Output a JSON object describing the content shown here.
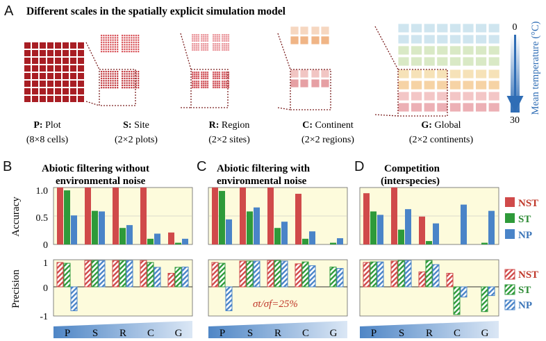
{
  "panel_a": {
    "letter": "A",
    "title": "Different scales in the spatially explicit simulation model",
    "scales": [
      {
        "key": "P",
        "name": "Plot",
        "desc": "(8×8 cells)",
        "cx": 68
      },
      {
        "key": "S",
        "name": "Site",
        "desc": "(2×2 plots)",
        "cx": 196
      },
      {
        "key": "R",
        "name": "Region",
        "desc": "(2×2 sites)",
        "cx": 330
      },
      {
        "key": "C",
        "name": "Continent",
        "desc": "(2×2 regions)",
        "cx": 472
      },
      {
        "key": "G",
        "name": "Global",
        "desc": "(2×2 continents)",
        "cx": 635
      }
    ],
    "temperature": {
      "label": "Mean temperature (°C)",
      "min_label": "0",
      "max_label": "30"
    }
  },
  "panels": [
    {
      "letter": "B",
      "title_lines": [
        "Abiotic filtering without",
        "environmental noise"
      ],
      "annotation": ""
    },
    {
      "letter": "C",
      "title_lines": [
        "Abiotic filtering with",
        "environmental noise"
      ],
      "annotation": "σt/σf=25%"
    },
    {
      "letter": "D",
      "title_lines": [
        "Competition",
        "(interspecies)"
      ],
      "annotation": ""
    }
  ],
  "axes": {
    "accuracy_label": "Accuracy",
    "precision_label": "Precision",
    "accuracy_ticks": [
      "1.0",
      "0.5",
      "0"
    ],
    "precision_ticks": [
      "1",
      "0",
      "-1"
    ]
  },
  "legend_accuracy": [
    {
      "name": "NST",
      "color": "#d04a4a"
    },
    {
      "name": "ST",
      "color": "#2e9a3a"
    },
    {
      "name": "NP",
      "color": "#4a84c8"
    }
  ],
  "legend_precision": [
    {
      "name": "NST",
      "color": "#d04a4a"
    },
    {
      "name": "ST",
      "color": "#2e9a3a"
    },
    {
      "name": "NP",
      "color": "#4a84c8"
    }
  ],
  "chart_data": [
    {
      "type": "bar",
      "panel": "B",
      "ylabel": "Accuracy",
      "ylim": [
        0,
        1
      ],
      "categories": [
        "P",
        "S",
        "R",
        "C",
        "G"
      ],
      "series": [
        {
          "name": "NST",
          "values": [
            1.0,
            1.0,
            1.0,
            1.0,
            0.21
          ]
        },
        {
          "name": "ST",
          "values": [
            0.95,
            0.59,
            0.29,
            0.1,
            0.03
          ]
        },
        {
          "name": "NP",
          "values": [
            0.51,
            0.58,
            0.34,
            0.19,
            0.1
          ]
        }
      ]
    },
    {
      "type": "bar",
      "panel": "C",
      "ylabel": "Accuracy",
      "ylim": [
        0,
        1
      ],
      "categories": [
        "P",
        "S",
        "R",
        "C",
        "G"
      ],
      "series": [
        {
          "name": "NST",
          "values": [
            1.0,
            1.0,
            1.0,
            0.89,
            0.0
          ]
        },
        {
          "name": "ST",
          "values": [
            0.94,
            0.58,
            0.29,
            0.1,
            0.03
          ]
        },
        {
          "name": "NP",
          "values": [
            0.44,
            0.65,
            0.4,
            0.23,
            0.11
          ]
        }
      ]
    },
    {
      "type": "bar",
      "panel": "D",
      "ylabel": "Accuracy",
      "ylim": [
        0,
        1
      ],
      "categories": [
        "P",
        "S",
        "R",
        "C",
        "G"
      ],
      "series": [
        {
          "name": "NST",
          "values": [
            0.9,
            1.0,
            0.49,
            0.0,
            0.0
          ]
        },
        {
          "name": "ST",
          "values": [
            0.58,
            0.26,
            0.06,
            0.0,
            0.03
          ]
        },
        {
          "name": "NP",
          "values": [
            0.52,
            0.62,
            0.37,
            0.7,
            0.59
          ]
        }
      ]
    },
    {
      "type": "bar",
      "panel": "B",
      "ylabel": "Precision",
      "ylim": [
        -1,
        1
      ],
      "categories": [
        "P",
        "S",
        "R",
        "C",
        "G"
      ],
      "series": [
        {
          "name": "NST",
          "values": [
            0.9,
            0.97,
            0.97,
            0.97,
            0.5
          ]
        },
        {
          "name": "ST",
          "values": [
            0.87,
            0.97,
            0.97,
            0.9,
            0.72
          ]
        },
        {
          "name": "NP",
          "values": [
            -0.82,
            0.97,
            0.97,
            0.72,
            0.73
          ]
        }
      ]
    },
    {
      "type": "bar",
      "panel": "C",
      "ylabel": "Precision",
      "ylim": [
        -1,
        1
      ],
      "categories": [
        "P",
        "S",
        "R",
        "C",
        "G"
      ],
      "series": [
        {
          "name": "NST",
          "values": [
            0.9,
            0.95,
            0.97,
            0.85,
            0.0
          ]
        },
        {
          "name": "ST",
          "values": [
            0.87,
            0.95,
            0.97,
            0.92,
            0.73
          ]
        },
        {
          "name": "NP",
          "values": [
            -0.82,
            0.95,
            0.95,
            0.78,
            0.68
          ]
        }
      ]
    },
    {
      "type": "bar",
      "panel": "D",
      "ylabel": "Precision",
      "ylim": [
        -1,
        1
      ],
      "categories": [
        "P",
        "S",
        "R",
        "C",
        "G"
      ],
      "series": [
        {
          "name": "NST",
          "values": [
            0.9,
            0.95,
            0.55,
            0.5,
            0.0
          ]
        },
        {
          "name": "ST",
          "values": [
            0.92,
            0.97,
            0.97,
            -0.95,
            -0.85
          ]
        },
        {
          "name": "NP",
          "values": [
            0.92,
            0.97,
            0.82,
            -0.35,
            -0.3
          ]
        }
      ]
    }
  ]
}
